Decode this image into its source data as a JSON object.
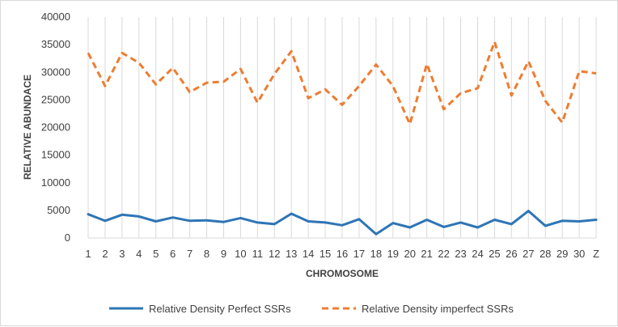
{
  "chart_data": {
    "type": "line",
    "title": "",
    "xlabel": "CHROMOSOME",
    "ylabel": "RELATIVE ABUNDACE",
    "categories": [
      "1",
      "2",
      "3",
      "4",
      "5",
      "6",
      "7",
      "8",
      "9",
      "10",
      "11",
      "12",
      "13",
      "14",
      "15",
      "16",
      "17",
      "18",
      "19",
      "20",
      "21",
      "22",
      "23",
      "24",
      "25",
      "26",
      "27",
      "28",
      "29",
      "30",
      "Z"
    ],
    "ylim": [
      0,
      40000
    ],
    "yticks": [
      "0",
      "5000",
      "10000",
      "15000",
      "20000",
      "25000",
      "30000",
      "35000",
      "40000"
    ],
    "grid": "vertical",
    "legend_position": "bottom",
    "series": [
      {
        "name": "Relative Density Perfect SSRs",
        "color": "#2e75b6",
        "style": "solid",
        "values": [
          4300,
          3100,
          4200,
          3900,
          3000,
          3700,
          3100,
          3200,
          2900,
          3600,
          2800,
          2500,
          4400,
          3000,
          2800,
          2300,
          3400,
          700,
          2700,
          1900,
          3300,
          2000,
          2800,
          1900,
          3300,
          2500,
          4900,
          2200,
          3100,
          3000,
          3300
        ]
      },
      {
        "name": "Relative Density imperfect SSRs",
        "color": "#ed7d31",
        "style": "dashed",
        "values": [
          33500,
          27500,
          33500,
          31700,
          27800,
          30800,
          26400,
          28100,
          28300,
          30600,
          24500,
          29700,
          33800,
          25300,
          26900,
          24100,
          27500,
          31400,
          27500,
          20600,
          31500,
          23300,
          26200,
          27100,
          35500,
          25800,
          32000,
          24800,
          20900,
          30200,
          29800
        ]
      }
    ]
  }
}
